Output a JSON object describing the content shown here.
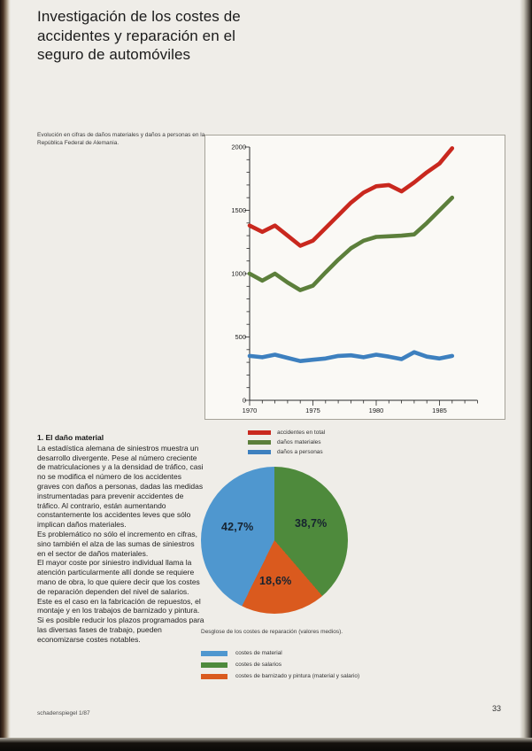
{
  "page": {
    "title_lines": [
      "Investigación de los costes de",
      "accidentes y reparación en el",
      "seguro de automóviles"
    ],
    "footer_left": "schadenspiegel 1/87",
    "page_number": "33"
  },
  "line_chart": {
    "caption": "Evolución en cifras de daños materiales y daños a personas en la República Federal de Alemania."
  },
  "article": {
    "heading": "1. El daño material",
    "paragraphs": [
      "La estadística alemana de siniestros muestra un desarrollo divergente. Pese al número creciente de matriculaciones y a la densidad de tráfico, casi no se modifica el número de los accidentes graves con daños a personas, dadas las medidas instrumentadas para prevenir accidentes de tráfico. Al contrario, están aumentando constantemente los accidentes leves que sólo implican daños materiales.",
      "Es problemático no sólo el incremento en cifras, sino también el alza de las sumas de siniestros en el sector de daños materiales.",
      "El mayor coste por siniestro individual llama la atención particularmente allí donde se requiere mano de obra, lo que quiere decir que los costes de reparación dependen del nivel de salarios. Este es el caso en la fabricación de repuestos, el montaje y en los trabajos de barnizado y pintura. Si es posible reducir los plazos programados para las diversas fases de trabajo, pueden economizarse costes notables."
    ]
  },
  "pie": {
    "caption": "Desglose de los costes de reparación (valores medios).",
    "legend": [
      {
        "label": "costes de material",
        "color": "#4f97cf"
      },
      {
        "label": "costes de salarios",
        "color": "#4e8a3c"
      },
      {
        "label": "costes de barnizado y pintura (material y salario)",
        "color": "#da5a1e"
      }
    ]
  },
  "chart_data": [
    {
      "type": "line",
      "title": "Evolución en cifras de daños materiales y daños a personas en la República Federal de Alemania",
      "x": [
        1970,
        1971,
        1972,
        1973,
        1974,
        1975,
        1976,
        1977,
        1978,
        1979,
        1980,
        1981,
        1982,
        1983,
        1984,
        1985,
        1986
      ],
      "series": [
        {
          "name": "accidentes en total",
          "color": "#c9281e",
          "values": [
            1380,
            1330,
            1380,
            1300,
            1220,
            1260,
            1360,
            1460,
            1560,
            1640,
            1690,
            1700,
            1650,
            1720,
            1800,
            1870,
            1990
          ]
        },
        {
          "name": "daños materiales",
          "color": "#5c7f3b",
          "values": [
            1000,
            945,
            1000,
            930,
            870,
            905,
            1010,
            1110,
            1200,
            1260,
            1290,
            1295,
            1300,
            1310,
            1400,
            1500,
            1600
          ]
        },
        {
          "name": "daños a personas",
          "color": "#3d80bf",
          "values": [
            350,
            340,
            360,
            335,
            310,
            320,
            330,
            350,
            355,
            340,
            360,
            345,
            325,
            380,
            345,
            330,
            350
          ]
        }
      ],
      "xlabel": "",
      "ylabel": "",
      "xlim": [
        1970,
        1988
      ],
      "ylim": [
        0,
        2000
      ],
      "yticks_major": [
        0,
        500,
        1000,
        1500,
        2000
      ],
      "ytick_minor_step": 100,
      "xticks_labeled": [
        1970,
        1975,
        1980,
        1985
      ],
      "xtick_minor_step": 1,
      "grid": false,
      "legend_position": "below"
    },
    {
      "type": "pie",
      "title": "Desglose de los costes de reparación (valores medios)",
      "start_angle_deg": 0,
      "direction": "clockwise",
      "slices": [
        {
          "label": "costes de salarios",
          "value": 38.7,
          "display": "38,7%",
          "color": "#4e8a3c"
        },
        {
          "label": "costes de barnizado y pintura (material y salario)",
          "value": 18.6,
          "display": "18,6%",
          "color": "#da5a1e"
        },
        {
          "label": "costes de material",
          "value": 42.7,
          "display": "42,7%",
          "color": "#4f97cf"
        }
      ]
    }
  ]
}
